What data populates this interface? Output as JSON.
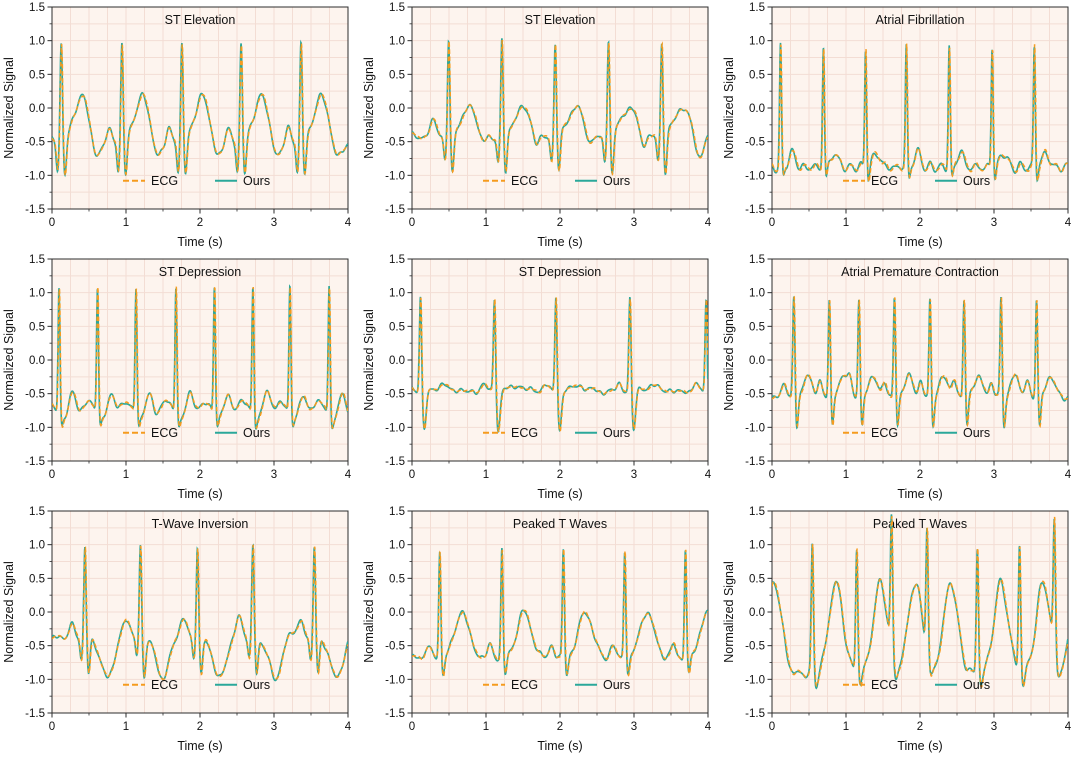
{
  "figure": {
    "description": "3x3 grid of ECG waveform comparison plots (ground-truth ECG vs Ours)"
  },
  "chart_data": {
    "type": "line",
    "layout": {
      "rows": 3,
      "cols": 3
    },
    "xlabel": "Time (s)",
    "ylabel": "Normalized Signal",
    "xlim": [
      0,
      4
    ],
    "ylim": [
      -1.5,
      1.5
    ],
    "xticks": [
      "0",
      "1",
      "2",
      "3",
      "4"
    ],
    "xtick_values": [
      0,
      1,
      2,
      3,
      4
    ],
    "yticks": [
      "-1.5",
      "-1.0",
      "-0.5",
      "0.0",
      "0.5",
      "1.0",
      "1.5"
    ],
    "ytick_values": [
      -1.5,
      -1.0,
      -0.5,
      0.0,
      0.5,
      1.0,
      1.5
    ],
    "grid": true,
    "legend": {
      "position": "inside-bottom",
      "entries": [
        {
          "name": "ECG",
          "color": "#F59B1E",
          "style": "dashed"
        },
        {
          "name": "Ours",
          "color": "#2BA89A",
          "style": "solid"
        }
      ]
    },
    "colors": {
      "background": "#fdf4ee",
      "grid": "#f3ddd4",
      "axis": "#2c2c2c",
      "text": "#111111"
    },
    "subplots": [
      {
        "title": "ST Elevation",
        "base": -0.55,
        "beats": [
          0.13,
          0.95,
          1.76,
          2.56,
          3.37
        ],
        "components": [
          {
            "dt": -0.18,
            "amp": 0.28,
            "w": 0.035
          },
          {
            "dt": -0.05,
            "amp": -0.4,
            "w": 0.018
          },
          {
            "dt": 0.0,
            "amp": 1.55,
            "w": 0.016
          },
          {
            "dt": 0.05,
            "amp": -0.5,
            "w": 0.02
          },
          {
            "dt": 0.27,
            "amp": 0.72,
            "w": 0.1
          },
          {
            "dt": 0.48,
            "amp": -0.25,
            "w": 0.05
          }
        ],
        "osc": {
          "amp": 0.035,
          "freq": 5.0
        }
      },
      {
        "title": "ST Elevation",
        "base": -0.42,
        "beats": [
          0.5,
          1.22,
          1.94,
          2.66,
          3.38
        ],
        "components": [
          {
            "dt": -0.2,
            "amp": 0.25,
            "w": 0.04
          },
          {
            "dt": -0.05,
            "amp": -0.35,
            "w": 0.018
          },
          {
            "dt": 0.0,
            "amp": 1.42,
            "w": 0.015
          },
          {
            "dt": 0.05,
            "amp": -0.6,
            "w": 0.02
          },
          {
            "dt": 0.28,
            "amp": 0.42,
            "w": 0.11
          },
          {
            "dt": 0.5,
            "amp": -0.35,
            "w": 0.055
          }
        ],
        "osc": {
          "amp": 0.03,
          "freq": 4.0
        }
      },
      {
        "title": "Atrial Fibrillation",
        "base": -0.88,
        "beats": [
          0.12,
          0.7,
          1.27,
          1.82,
          2.4,
          2.98,
          3.55
        ],
        "components": [
          {
            "dt": 0.0,
            "amp": 1.82,
            "w": 0.013
          },
          {
            "dt": 0.035,
            "amp": -0.2,
            "w": 0.018
          },
          {
            "dt": 0.15,
            "amp": 0.22,
            "w": 0.045
          }
        ],
        "osc": {
          "amp": 0.055,
          "freq": 6.5
        }
      },
      {
        "title": "ST Depression",
        "base": -0.92,
        "beats": [
          0.1,
          0.62,
          1.14,
          1.68,
          2.2,
          2.72,
          3.22,
          3.75
        ],
        "components": [
          {
            "dt": -0.13,
            "amp": 0.3,
            "w": 0.09
          },
          {
            "dt": 0.0,
            "amp": 1.92,
            "w": 0.013
          },
          {
            "dt": 0.035,
            "amp": -0.15,
            "w": 0.018
          },
          {
            "dt": 0.18,
            "amp": 0.4,
            "w": 0.05
          }
        ],
        "osc": {
          "amp": 0.02,
          "freq": 3.0
        }
      },
      {
        "title": "ST Depression",
        "base": -0.47,
        "beats": [
          0.12,
          1.12,
          1.95,
          2.95,
          3.98
        ],
        "components": [
          {
            "dt": -0.15,
            "amp": 0.12,
            "w": 0.035
          },
          {
            "dt": 0.0,
            "amp": 1.47,
            "w": 0.015
          },
          {
            "dt": 0.05,
            "amp": -0.58,
            "w": 0.025
          },
          {
            "dt": 0.3,
            "amp": 0.08,
            "w": 0.12
          }
        ],
        "osc": {
          "amp": 0.02,
          "freq": 3.5
        }
      },
      {
        "title": "Atrial Premature Contraction",
        "base": -0.55,
        "beats": [
          0.3,
          0.78,
          1.18,
          1.66,
          2.14,
          2.6,
          3.1,
          3.58
        ],
        "components": [
          {
            "dt": -0.13,
            "amp": 0.22,
            "w": 0.03
          },
          {
            "dt": 0.0,
            "amp": 1.5,
            "w": 0.014
          },
          {
            "dt": 0.04,
            "amp": -0.45,
            "w": 0.018
          },
          {
            "dt": 0.19,
            "amp": 0.32,
            "w": 0.055
          }
        ],
        "osc": {
          "amp": 0.03,
          "freq": 5.0
        }
      },
      {
        "title": "T-Wave Inversion",
        "base": -0.38,
        "beats": [
          0.45,
          1.2,
          1.97,
          2.72,
          3.55
        ],
        "components": [
          {
            "dt": -0.18,
            "amp": 0.18,
            "w": 0.04
          },
          {
            "dt": -0.05,
            "amp": -0.3,
            "w": 0.018
          },
          {
            "dt": 0.0,
            "amp": 1.38,
            "w": 0.015
          },
          {
            "dt": 0.05,
            "amp": -0.55,
            "w": 0.02
          },
          {
            "dt": 0.3,
            "amp": -0.6,
            "w": 0.085
          },
          {
            "dt": 0.55,
            "amp": 0.12,
            "w": 0.06
          }
        ],
        "osc": {
          "amp": 0.03,
          "freq": 4.5
        }
      },
      {
        "title": "Peaked T Waves",
        "base": -0.68,
        "beats": [
          0.38,
          1.22,
          2.05,
          2.88,
          3.7
        ],
        "components": [
          {
            "dt": -0.16,
            "amp": 0.18,
            "w": 0.035
          },
          {
            "dt": 0.0,
            "amp": 1.62,
            "w": 0.014
          },
          {
            "dt": 0.045,
            "amp": -0.28,
            "w": 0.02
          },
          {
            "dt": 0.3,
            "amp": 0.68,
            "w": 0.095
          }
        ],
        "osc": {
          "amp": 0.025,
          "freq": 4.0
        }
      },
      {
        "title": "Peaked T Waves",
        "base": -0.92,
        "beats": [
          -0.28,
          0.55,
          1.15,
          1.62,
          2.1,
          2.78,
          3.35,
          3.82
        ],
        "components": [
          {
            "dt": 0.0,
            "amp": 1.92,
            "w": 0.015
          },
          {
            "dt": 0.05,
            "amp": -0.2,
            "w": 0.025
          },
          {
            "dt": 0.32,
            "amp": 1.35,
            "w": 0.095
          }
        ],
        "osc": {
          "amp": 0.05,
          "freq": 5.5
        }
      }
    ]
  }
}
